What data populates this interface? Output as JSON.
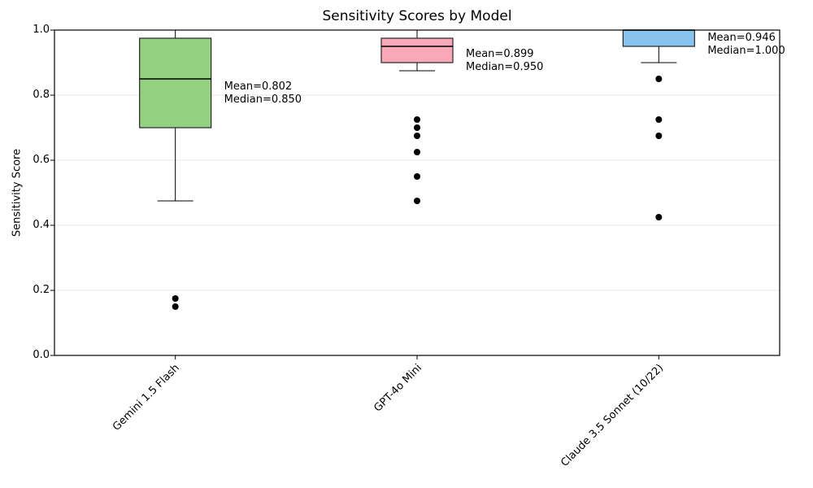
{
  "chart_data": {
    "type": "boxplot",
    "title": "Sensitivity Scores by Model",
    "xlabel": "",
    "ylabel": "Sensitivity Score",
    "ylim": [
      0.0,
      1.0
    ],
    "yticks": [
      0.0,
      0.2,
      0.4,
      0.6,
      0.8,
      1.0
    ],
    "grid": "horizontal",
    "legend": "none",
    "categories": [
      "Gemini 1.5 Flash",
      "GPT-4o Mini",
      "Claude 3.5 Sonnet (10/22)"
    ],
    "boxes": [
      {
        "category": "Gemini 1.5 Flash",
        "fill_color": "#93d07f",
        "whisker_low": 0.475,
        "q1": 0.7,
        "median": 0.85,
        "q3": 0.975,
        "whisker_high": 1.0,
        "outliers": [
          0.175,
          0.15
        ],
        "mean": 0.802,
        "mean_label": "Mean=0.802",
        "median_label": "Median=0.850"
      },
      {
        "category": "GPT-4o Mini",
        "fill_color": "#f9a8b8",
        "whisker_low": 0.875,
        "q1": 0.9,
        "median": 0.95,
        "q3": 0.975,
        "whisker_high": 1.0,
        "outliers": [
          0.725,
          0.7,
          0.675,
          0.625,
          0.55,
          0.475
        ],
        "mean": 0.899,
        "mean_label": "Mean=0.899",
        "median_label": "Median=0.950"
      },
      {
        "category": "Claude 3.5 Sonnet (10/22)",
        "fill_color": "#87c3ed",
        "whisker_low": 0.9,
        "q1": 0.95,
        "median": 1.0,
        "q3": 1.0,
        "whisker_high": 1.0,
        "outliers": [
          0.85,
          0.725,
          0.675,
          0.425
        ],
        "mean": 0.946,
        "mean_label": "Mean=0.946",
        "median_label": "Median=1.000"
      }
    ],
    "colors": {
      "background": "#ffffff",
      "outlier": "#000000",
      "box_edge": "#262626",
      "median_line": "#000000",
      "whisker": "#000000",
      "grid": "#e7e7e7",
      "axis": "#000000",
      "text": "#000000"
    }
  }
}
